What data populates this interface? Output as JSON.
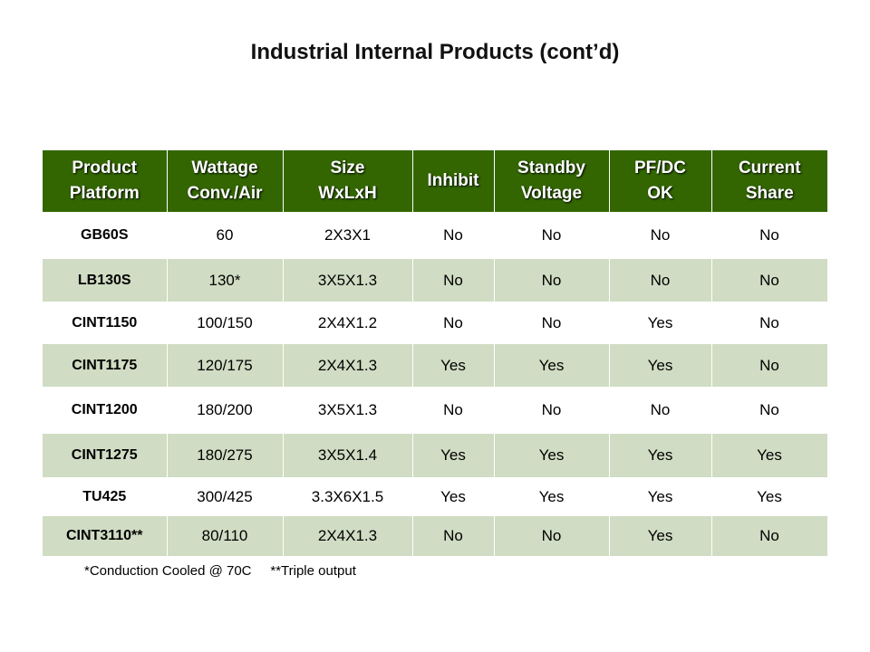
{
  "title": "Industrial Internal Products (cont’d)",
  "columns": [
    [
      "Product",
      "Platform"
    ],
    [
      "Wattage",
      "Conv./Air"
    ],
    [
      "Size",
      "WxLxH"
    ],
    [
      "Inhibit",
      ""
    ],
    [
      "Standby",
      "Voltage"
    ],
    [
      "PF/DC",
      "OK"
    ],
    [
      "Current",
      "Share"
    ]
  ],
  "rows": [
    [
      "GB60S",
      "60",
      "2X3X1",
      "No",
      "No",
      "No",
      "No"
    ],
    [
      "LB130S",
      "130*",
      "3X5X1.3",
      "No",
      "No",
      "No",
      "No"
    ],
    [
      "CINT1150",
      "100/150",
      "2X4X1.2",
      "No",
      "No",
      "Yes",
      "No"
    ],
    [
      "CINT1175",
      "120/175",
      "2X4X1.3",
      "Yes",
      "Yes",
      "Yes",
      "No"
    ],
    [
      "CINT1200",
      "180/200",
      "3X5X1.3",
      "No",
      "No",
      "No",
      "No"
    ],
    [
      "CINT1275",
      "180/275",
      "3X5X1.4",
      "Yes",
      "Yes",
      "Yes",
      "Yes"
    ],
    [
      "TU425",
      "300/425",
      "3.3X6X1.5",
      "Yes",
      "Yes",
      "Yes",
      "Yes"
    ],
    [
      "CINT3110**",
      "80/110",
      "2X4X1.3",
      "No",
      "No",
      "Yes",
      "No"
    ]
  ],
  "footnotes": [
    "*Conduction Cooled @ 70C",
    "**Triple output"
  ]
}
